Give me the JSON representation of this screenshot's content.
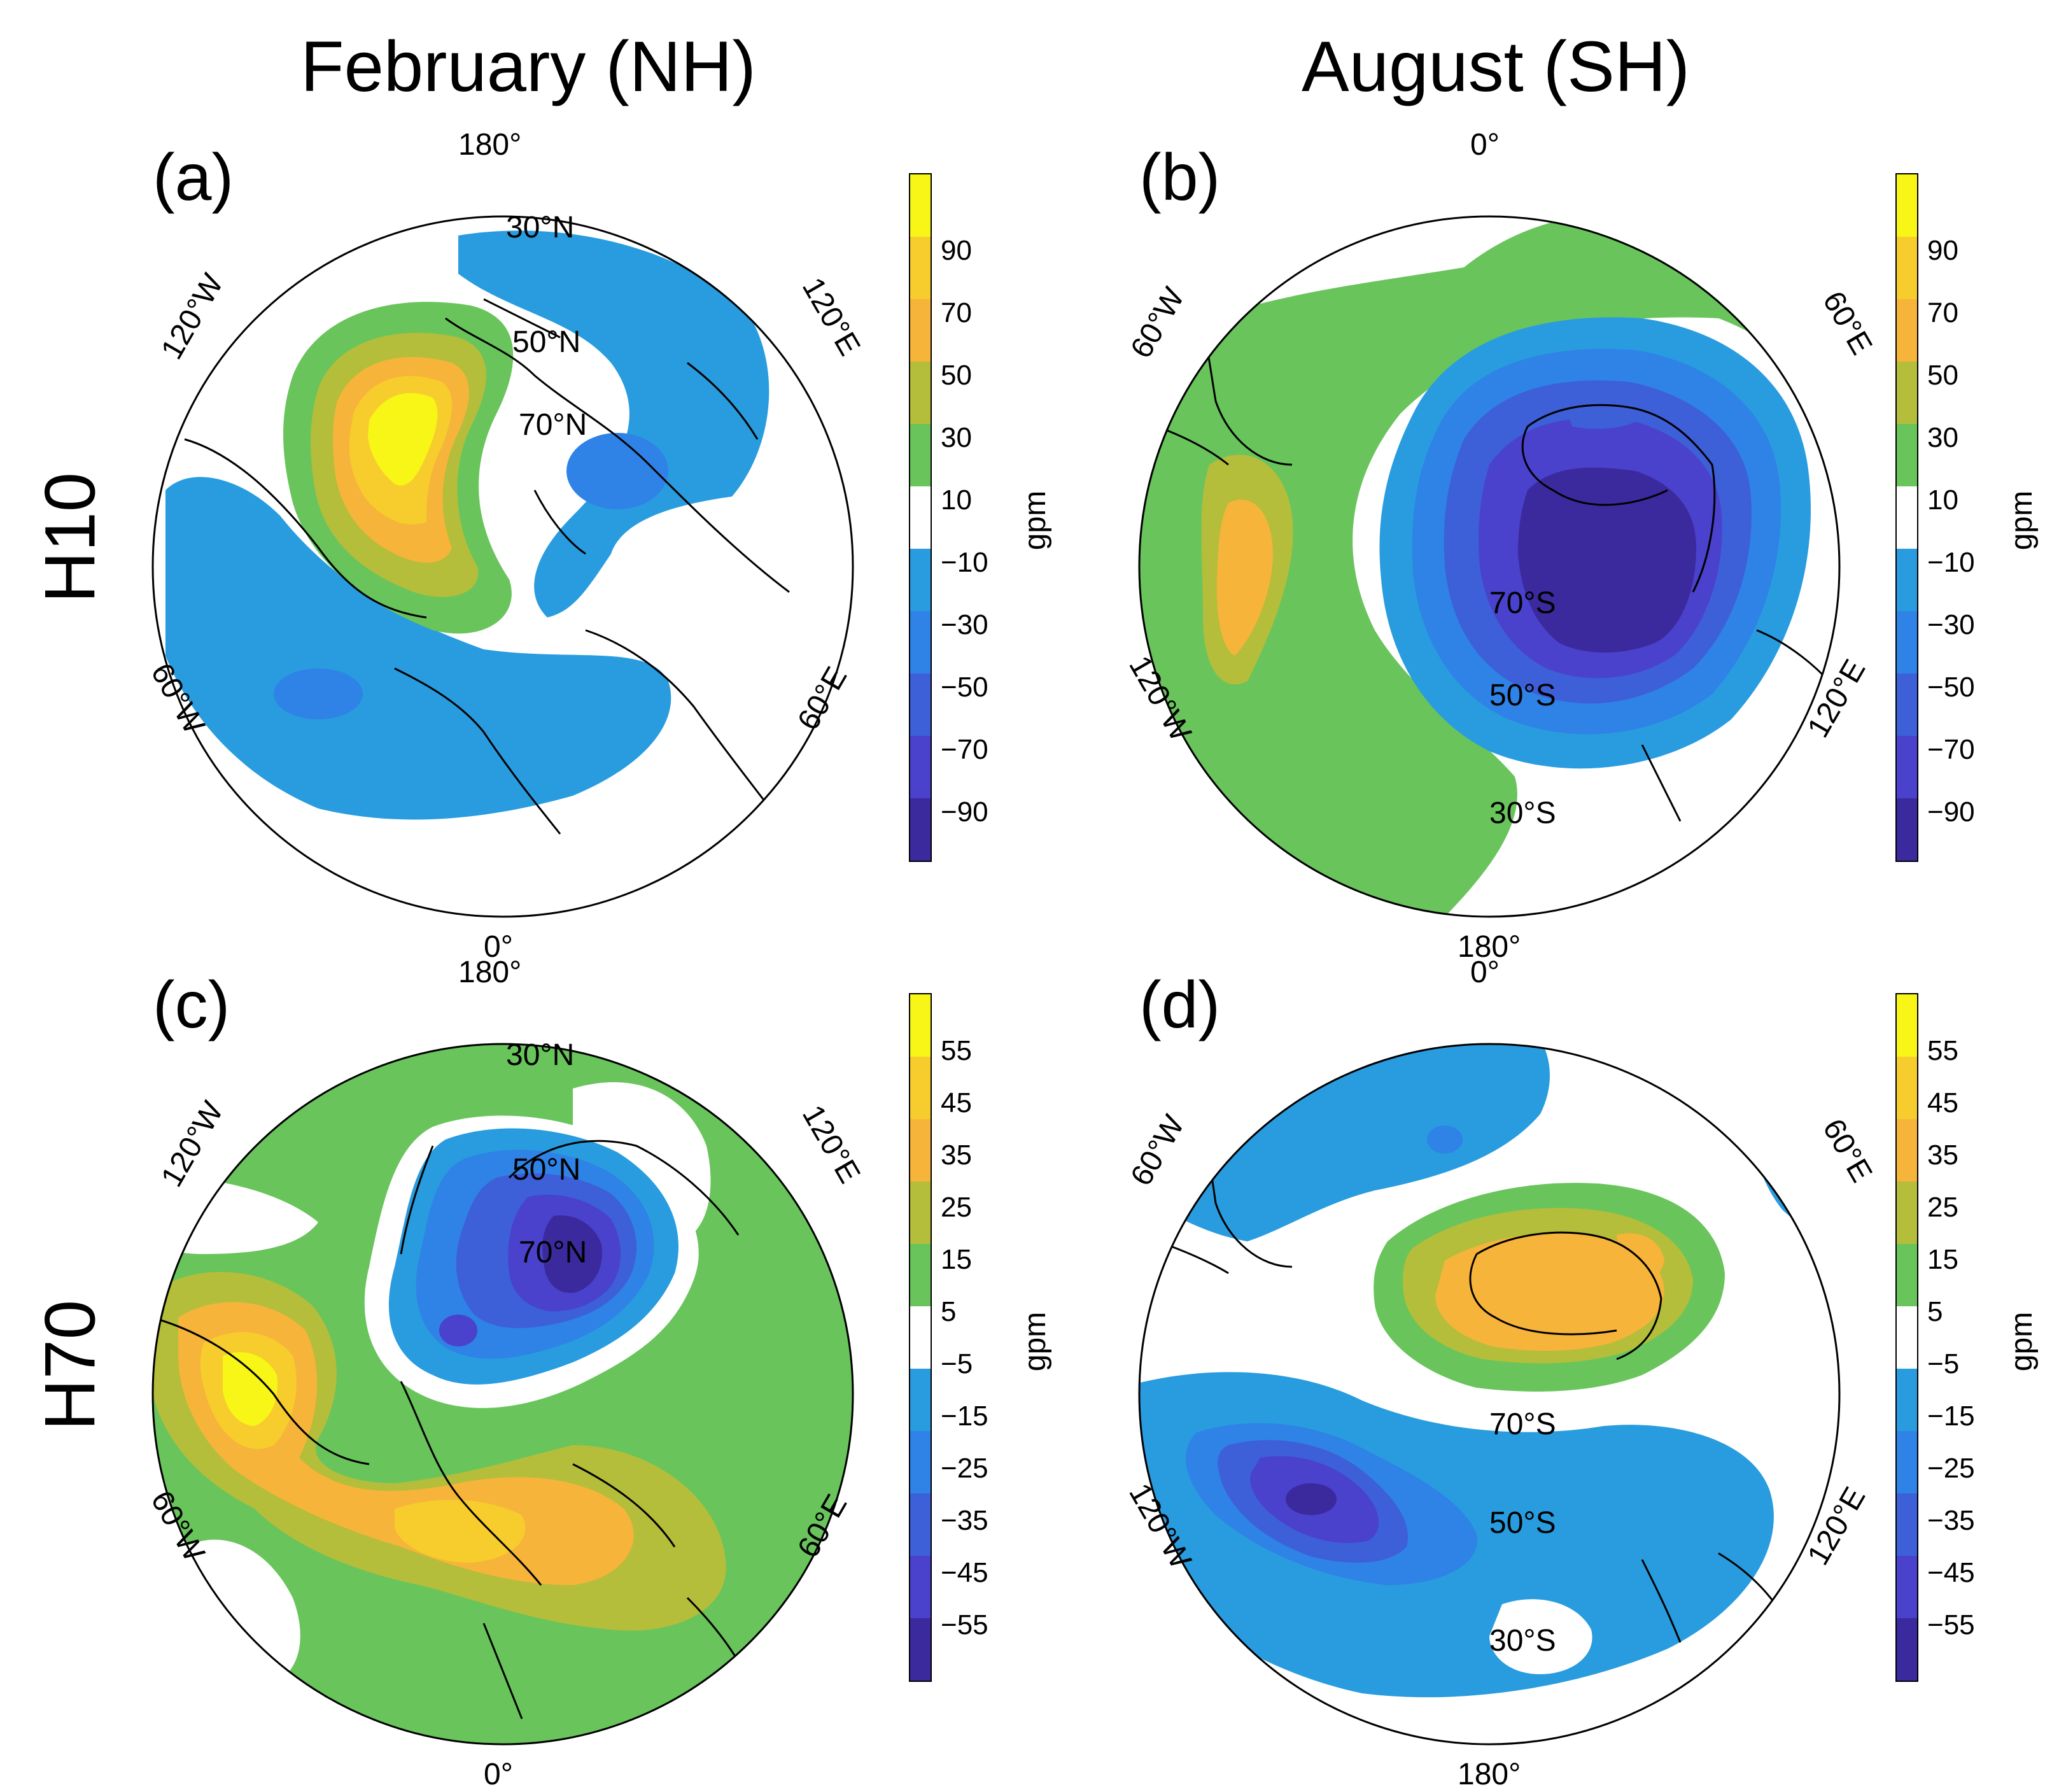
{
  "figure": {
    "col_titles": [
      "February (NH)",
      "August (SH)"
    ],
    "row_titles": [
      "H10",
      "H70"
    ],
    "colors": {
      "blue1": "#299cdf",
      "blue2": "#2f82e6",
      "blue3": "#3d5fd8",
      "blue4": "#4a41cc",
      "blue5": "#3a2a9e",
      "white": "#ffffff",
      "green": "#69c45c",
      "olive": "#b4be3a",
      "orange": "#f6b43a",
      "gold": "#f7cc2d",
      "yellow": "#f7f617"
    }
  },
  "panels": [
    {
      "id": "a",
      "label": "(a)",
      "hemisphere": "NH",
      "lon_labels": {
        "top": "180°",
        "bottom": "0°",
        "upper_left": "120°W",
        "upper_right": "120°E",
        "lower_left": "60°W",
        "lower_right": "60°E"
      },
      "lat_labels": [
        "30°N",
        "50°N",
        "70°N"
      ],
      "colorbar": {
        "unit": "gpm",
        "ticks": [
          "90",
          "70",
          "50",
          "30",
          "10",
          "−10",
          "−30",
          "−50",
          "−70",
          "−90"
        ]
      }
    },
    {
      "id": "b",
      "label": "(b)",
      "hemisphere": "SH",
      "lon_labels": {
        "top": "0°",
        "bottom": "180°",
        "upper_left": "60°W",
        "upper_right": "60°E",
        "lower_left": "120°W",
        "lower_right": "120°E"
      },
      "lat_labels": [
        "70°S",
        "50°S",
        "30°S"
      ],
      "colorbar": {
        "unit": "gpm",
        "ticks": [
          "90",
          "70",
          "50",
          "30",
          "10",
          "−10",
          "−30",
          "−50",
          "−70",
          "−90"
        ]
      }
    },
    {
      "id": "c",
      "label": "(c)",
      "hemisphere": "NH",
      "lon_labels": {
        "top": "180°",
        "bottom": "0°",
        "upper_left": "120°W",
        "upper_right": "120°E",
        "lower_left": "60°W",
        "lower_right": "60°E"
      },
      "lat_labels": [
        "30°N",
        "50°N",
        "70°N"
      ],
      "colorbar": {
        "unit": "gpm",
        "ticks": [
          "55",
          "45",
          "35",
          "25",
          "15",
          "5",
          "−5",
          "−15",
          "−25",
          "−35",
          "−45",
          "−55"
        ]
      }
    },
    {
      "id": "d",
      "label": "(d)",
      "hemisphere": "SH",
      "lon_labels": {
        "top": "0°",
        "bottom": "180°",
        "upper_left": "60°W",
        "upper_right": "60°E",
        "lower_left": "120°W",
        "lower_right": "120°E"
      },
      "lat_labels": [
        "70°S",
        "50°S",
        "30°S"
      ],
      "colorbar": {
        "unit": "gpm",
        "ticks": [
          "55",
          "45",
          "35",
          "25",
          "15",
          "5",
          "−5",
          "−15",
          "−25",
          "−35",
          "−45",
          "−55"
        ]
      }
    }
  ]
}
